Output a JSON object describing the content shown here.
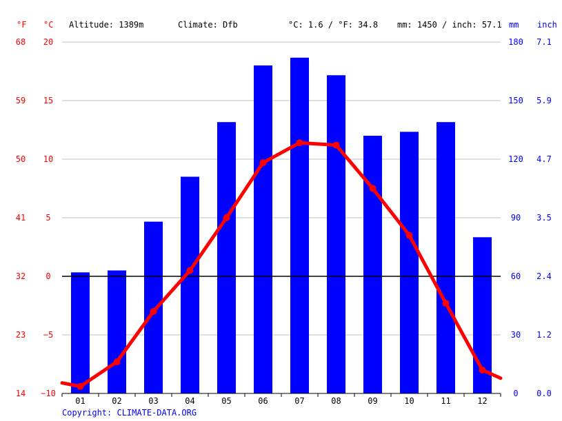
{
  "header": {
    "unit_f": "°F",
    "unit_c": "°C",
    "altitude": "Altitude: 1389m",
    "climate": "Climate: Dfb",
    "temp_avg": "°C: 1.6 / °F: 34.8",
    "precip_total": "mm: 1450 / inch: 57.1",
    "unit_mm": "mm",
    "unit_inch": "inch"
  },
  "footer": {
    "copyright": "Copyright: CLIMATE-DATA.ORG"
  },
  "colors": {
    "temperature": "#ff0000",
    "precipitation": "#0000ff",
    "zero_line": "#000000",
    "grid": "#c0c0c0"
  },
  "chart_data": {
    "type": "bar+line",
    "categories": [
      "01",
      "02",
      "03",
      "04",
      "05",
      "06",
      "07",
      "08",
      "09",
      "10",
      "11",
      "12"
    ],
    "series": [
      {
        "values": [
          62,
          63,
          88,
          111,
          139,
          168,
          172,
          163,
          132,
          134,
          139,
          80
        ]
      },
      {
        "values": [
          -9.4,
          -7.3,
          -3.0,
          0.5,
          5.0,
          9.7,
          11.4,
          11.2,
          7.5,
          3.5,
          -2.3,
          -8.0
        ]
      }
    ],
    "line_edge_values": {
      "left": -9.1,
      "right": -8.7
    },
    "axes": {
      "left_f": {
        "ticks": [
          "68",
          "59",
          "50",
          "41",
          "32",
          "23",
          "14"
        ]
      },
      "left_c": {
        "ticks": [
          "20",
          "15",
          "10",
          "5",
          "0",
          "−5",
          "−10"
        ],
        "ylim": [
          -10,
          20
        ]
      },
      "right_mm": {
        "ticks": [
          "180",
          "150",
          "120",
          "90",
          "60",
          "30",
          "0"
        ],
        "ylim": [
          0,
          180
        ]
      },
      "right_inch": {
        "ticks": [
          "7.1",
          "5.9",
          "4.7",
          "3.5",
          "2.4",
          "1.2",
          "0.0"
        ]
      }
    },
    "grid": true
  }
}
